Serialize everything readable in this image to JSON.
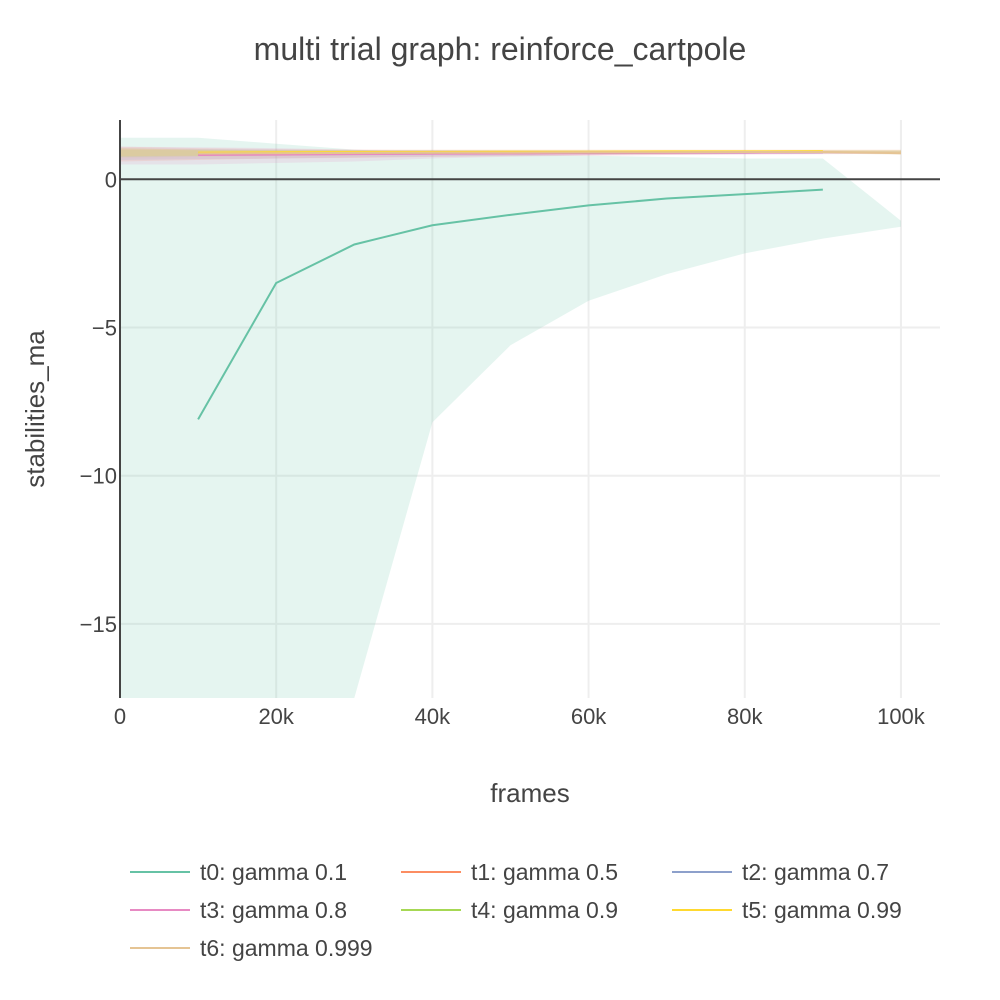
{
  "chart_data": {
    "type": "line",
    "title": "multi trial graph: reinforce_cartpole",
    "xlabel": "frames",
    "ylabel": "stabilities_ma",
    "xlim": [
      0,
      105000
    ],
    "ylim": [
      -17.5,
      2
    ],
    "x_ticks": [
      {
        "value": 0,
        "label": "0"
      },
      {
        "value": 20000,
        "label": "20k"
      },
      {
        "value": 40000,
        "label": "40k"
      },
      {
        "value": 60000,
        "label": "60k"
      },
      {
        "value": 80000,
        "label": "80k"
      },
      {
        "value": 100000,
        "label": "100k"
      }
    ],
    "y_ticks": [
      {
        "value": 0,
        "label": "0"
      },
      {
        "value": -5,
        "label": "−5"
      },
      {
        "value": -10,
        "label": "−10"
      },
      {
        "value": -15,
        "label": "−15"
      }
    ],
    "grid": true,
    "legend_position": "bottom",
    "series": [
      {
        "name": "t0: gamma 0.1",
        "color": "#66c2a5",
        "x": [
          10000,
          20000,
          30000,
          40000,
          50000,
          60000,
          70000,
          80000,
          90000
        ],
        "y": [
          -8.1,
          -3.5,
          -2.2,
          -1.55,
          -1.2,
          -0.88,
          -0.65,
          -0.5,
          -0.35
        ],
        "band_x": [
          0,
          10000,
          20000,
          30000,
          40000,
          50000,
          60000,
          70000,
          80000,
          90000,
          100000
        ],
        "band_upper": [
          1.4,
          1.4,
          1.2,
          1.0,
          0.9,
          0.85,
          0.8,
          0.75,
          0.7,
          0.7,
          -1.4
        ],
        "band_lower": [
          -25,
          -25,
          -25,
          -17.5,
          -8.2,
          -5.6,
          -4.1,
          -3.2,
          -2.5,
          -2.0,
          -1.6
        ]
      },
      {
        "name": "t1: gamma 0.5",
        "color": "#fc8d62",
        "x": [
          10000,
          20000,
          30000,
          40000,
          50000,
          60000,
          70000,
          80000,
          90000
        ],
        "y": [
          0.85,
          0.86,
          0.87,
          0.88,
          0.89,
          0.9,
          0.9,
          0.91,
          0.92
        ],
        "band_x": [
          0,
          10000,
          20000,
          30000,
          40000,
          50000,
          60000,
          70000,
          80000,
          90000,
          100000
        ],
        "band_upper": [
          1.1,
          1.05,
          1.02,
          1.0,
          1.0,
          1.0,
          1.0,
          1.0,
          1.0,
          1.0,
          1.0
        ],
        "band_lower": [
          0.6,
          0.65,
          0.7,
          0.72,
          0.75,
          0.78,
          0.8,
          0.82,
          0.84,
          0.85,
          0.86
        ]
      },
      {
        "name": "t2: gamma 0.7",
        "color": "#8da0cb",
        "x": [
          10000,
          20000,
          30000,
          40000,
          50000,
          60000,
          70000,
          80000,
          90000
        ],
        "y": [
          0.84,
          0.85,
          0.86,
          0.87,
          0.88,
          0.89,
          0.9,
          0.9,
          0.91
        ],
        "band_x": [
          0,
          10000,
          20000,
          30000,
          40000,
          50000,
          60000,
          70000,
          80000,
          90000,
          100000
        ],
        "band_upper": [
          1.05,
          1.02,
          1.0,
          0.98,
          0.98,
          0.97,
          0.97,
          0.97,
          0.97,
          0.97,
          0.97
        ],
        "band_lower": [
          0.65,
          0.68,
          0.7,
          0.74,
          0.77,
          0.8,
          0.82,
          0.84,
          0.85,
          0.86,
          0.86
        ]
      },
      {
        "name": "t3: gamma 0.8",
        "color": "#e78ac3",
        "x": [
          10000,
          20000,
          30000,
          40000,
          50000,
          60000,
          70000,
          80000,
          90000
        ],
        "y": [
          0.82,
          0.83,
          0.85,
          0.86,
          0.87,
          0.88,
          0.89,
          0.9,
          0.91
        ],
        "band_x": [
          0,
          10000,
          20000,
          30000,
          40000,
          50000,
          60000,
          70000,
          80000,
          90000,
          100000
        ],
        "band_upper": [
          1.1,
          1.08,
          1.05,
          1.0,
          0.98,
          0.97,
          0.97,
          0.97,
          0.97,
          0.97,
          0.97
        ],
        "band_lower": [
          0.5,
          0.5,
          0.55,
          0.6,
          0.7,
          0.76,
          0.8,
          0.82,
          0.84,
          0.85,
          0.86
        ]
      },
      {
        "name": "t4: gamma 0.9",
        "color": "#a6d854",
        "x": [
          10000,
          20000,
          30000,
          40000,
          50000,
          60000,
          70000,
          80000,
          90000
        ],
        "y": [
          0.88,
          0.89,
          0.9,
          0.9,
          0.91,
          0.91,
          0.92,
          0.92,
          0.93
        ],
        "band_x": [
          0,
          10000,
          20000,
          30000,
          40000,
          50000,
          60000,
          70000,
          80000,
          90000,
          100000
        ],
        "band_upper": [
          1.0,
          0.98,
          0.97,
          0.97,
          0.97,
          0.97,
          0.97,
          0.97,
          0.97,
          0.97,
          0.97
        ],
        "band_lower": [
          0.75,
          0.78,
          0.8,
          0.82,
          0.84,
          0.85,
          0.86,
          0.87,
          0.88,
          0.88,
          0.88
        ]
      },
      {
        "name": "t5: gamma 0.99",
        "color": "#ffd92f",
        "x": [
          10000,
          20000,
          30000,
          40000,
          50000,
          60000,
          70000,
          80000,
          90000
        ],
        "y": [
          0.9,
          0.91,
          0.92,
          0.92,
          0.93,
          0.93,
          0.94,
          0.94,
          0.95
        ],
        "band_x": [
          0,
          10000,
          20000,
          30000,
          40000,
          50000,
          60000,
          70000,
          80000,
          90000,
          100000
        ],
        "band_upper": [
          1.05,
          1.0,
          0.98,
          0.98,
          0.98,
          0.98,
          0.98,
          0.98,
          0.98,
          0.98,
          0.98
        ],
        "band_lower": [
          0.78,
          0.8,
          0.82,
          0.84,
          0.86,
          0.87,
          0.88,
          0.89,
          0.9,
          0.9,
          0.9
        ]
      },
      {
        "name": "t6: gamma 0.999",
        "color": "#e5c494",
        "x": [
          10000,
          20000,
          30000,
          40000,
          50000,
          60000,
          70000,
          80000,
          90000,
          100000
        ],
        "y": [
          0.87,
          0.88,
          0.89,
          0.9,
          0.9,
          0.91,
          0.91,
          0.92,
          0.92,
          0.88
        ],
        "band_x": [
          0,
          10000,
          20000,
          30000,
          40000,
          50000,
          60000,
          70000,
          80000,
          90000,
          100000
        ],
        "band_upper": [
          1.02,
          1.0,
          0.98,
          0.98,
          0.98,
          0.98,
          0.98,
          0.98,
          0.98,
          0.98,
          0.95
        ],
        "band_lower": [
          0.72,
          0.75,
          0.78,
          0.8,
          0.83,
          0.85,
          0.86,
          0.87,
          0.88,
          0.88,
          0.82
        ]
      }
    ]
  }
}
